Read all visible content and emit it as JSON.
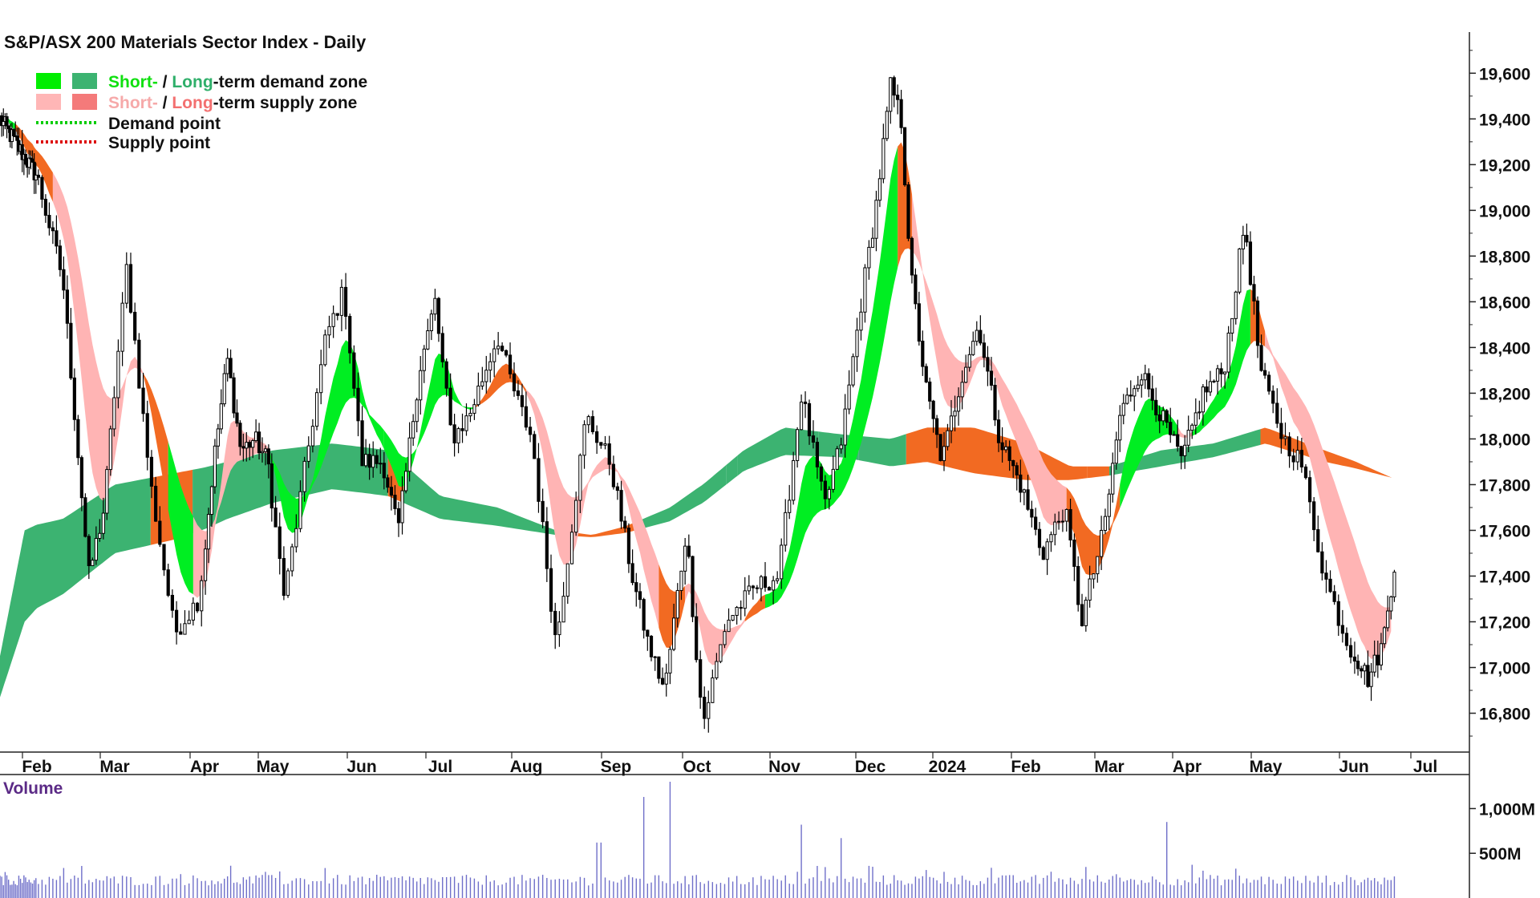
{
  "chart_data": [
    {
      "type": "candlestick",
      "title": "S&P/ASX 200 Materials Sector Index - Daily",
      "legend": [
        {
          "label_parts": [
            {
              "text": "Short-",
              "color": "#10e010"
            },
            {
              "text": " / ",
              "color": "#111111"
            },
            {
              "text": "Long",
              "color": "#2faf6a"
            },
            {
              "text": "-term demand zone",
              "color": "#111111"
            }
          ],
          "swatches": [
            "#00ee00",
            "#3cb371"
          ],
          "style": "swatch"
        },
        {
          "label_parts": [
            {
              "text": "Short-",
              "color": "#f6a9a9"
            },
            {
              "text": " / ",
              "color": "#111111"
            },
            {
              "text": "Long",
              "color": "#f37070"
            },
            {
              "text": "-term supply zone",
              "color": "#111111"
            }
          ],
          "swatches": [
            "#ffb6b6",
            "#f47a7a"
          ],
          "style": "swatch"
        },
        {
          "label_parts": [
            {
              "text": "Demand point",
              "color": "#111111"
            }
          ],
          "swatches": [
            "#00cc00"
          ],
          "style": "dotted"
        },
        {
          "label_parts": [
            {
              "text": "Supply point",
              "color": "#111111"
            }
          ],
          "swatches": [
            "#dd0000"
          ],
          "style": "dotted"
        }
      ],
      "x_labels": [
        "Feb",
        "Mar",
        "Apr",
        "May",
        "Jun",
        "Jul",
        "Aug",
        "Sep",
        "Oct",
        "Nov",
        "Dec",
        "2024",
        "Feb",
        "Mar",
        "Apr",
        "May",
        "Jun",
        "Jul"
      ],
      "y_ticks": [
        "19,600",
        "19,400",
        "19,200",
        "19,000",
        "18,800",
        "18,600",
        "18,400",
        "18,200",
        "18,000",
        "17,800",
        "17,600",
        "17,400",
        "17,200",
        "17,000",
        "16,800"
      ],
      "y_tick_values": [
        19600,
        19400,
        19200,
        19000,
        18800,
        18600,
        18400,
        18200,
        18000,
        17800,
        17600,
        17400,
        17200,
        17000,
        16800
      ],
      "ylim": [
        16630,
        19780
      ],
      "price_anchors": [
        [
          0,
          19400
        ],
        [
          1.5,
          19150
        ],
        [
          2.0,
          18700
        ],
        [
          2.5,
          17400
        ],
        [
          2.8,
          17700
        ],
        [
          3.2,
          18750
        ],
        [
          3.6,
          17800
        ],
        [
          4.0,
          17150
        ],
        [
          4.4,
          17300
        ],
        [
          4.7,
          17900
        ],
        [
          5.0,
          18350
        ],
        [
          5.3,
          17950
        ],
        [
          5.6,
          18000
        ],
        [
          5.9,
          17900
        ],
        [
          6.2,
          17300
        ],
        [
          6.5,
          17800
        ],
        [
          6.9,
          18450
        ],
        [
          7.2,
          18650
        ],
        [
          7.5,
          17900
        ],
        [
          7.9,
          17900
        ],
        [
          8.2,
          17600
        ],
        [
          8.6,
          18300
        ],
        [
          8.9,
          18600
        ],
        [
          9.2,
          18000
        ],
        [
          9.5,
          18100
        ],
        [
          10.0,
          18450
        ],
        [
          10.3,
          18200
        ],
        [
          10.6,
          18000
        ],
        [
          11.0,
          17100
        ],
        [
          11.5,
          18100
        ],
        [
          11.9,
          17900
        ],
        [
          12.3,
          17400
        ],
        [
          12.6,
          17100
        ],
        [
          12.9,
          16900
        ],
        [
          13.3,
          17600
        ],
        [
          13.6,
          16750
        ],
        [
          14.0,
          17200
        ],
        [
          14.5,
          17350
        ],
        [
          14.9,
          17400
        ],
        [
          15.3,
          18200
        ],
        [
          15.7,
          17700
        ],
        [
          16.0,
          18000
        ],
        [
          16.4,
          18700
        ],
        [
          16.6,
          19000
        ],
        [
          16.9,
          19550
        ],
        [
          17.1,
          19400
        ],
        [
          17.3,
          18700
        ],
        [
          17.6,
          18200
        ],
        [
          17.9,
          17900
        ],
        [
          18.3,
          18300
        ],
        [
          18.6,
          18500
        ],
        [
          19.0,
          18000
        ],
        [
          19.4,
          17800
        ],
        [
          19.8,
          17500
        ],
        [
          20.2,
          17700
        ],
        [
          20.5,
          17200
        ],
        [
          20.9,
          17600
        ],
        [
          21.2,
          18100
        ],
        [
          21.6,
          18300
        ],
        [
          22.0,
          18100
        ],
        [
          22.4,
          17900
        ],
        [
          22.8,
          18200
        ],
        [
          23.2,
          18300
        ],
        [
          23.6,
          18950
        ],
        [
          23.9,
          18300
        ],
        [
          24.3,
          18000
        ],
        [
          24.6,
          17900
        ],
        [
          25.0,
          17400
        ],
        [
          25.4,
          17100
        ],
        [
          25.8,
          16950
        ],
        [
          26.1,
          17100
        ],
        [
          26.35,
          17450
        ]
      ],
      "short_zone_segments": [
        {
          "range": [
            0,
            0.6
          ],
          "color": "green"
        },
        {
          "range": [
            0.6,
            1.8
          ],
          "color": "orange"
        },
        {
          "range": [
            1.8,
            3.5
          ],
          "color": "pink"
        },
        {
          "range": [
            3.5,
            3.9
          ],
          "color": "orange"
        },
        {
          "range": [
            3.9,
            4.3
          ],
          "color": "green"
        },
        {
          "range": [
            4.3,
            5.9
          ],
          "color": "pink"
        },
        {
          "range": [
            5.9,
            7.9
          ],
          "color": "green"
        },
        {
          "range": [
            7.9,
            9.6
          ],
          "color": "green"
        },
        {
          "range": [
            9.6,
            10.5
          ],
          "color": "orange"
        },
        {
          "range": [
            10.5,
            12.8
          ],
          "color": "pink"
        },
        {
          "range": [
            12.8,
            13.3
          ],
          "color": "orange"
        },
        {
          "range": [
            13.3,
            14.3
          ],
          "color": "pink"
        },
        {
          "range": [
            14.3,
            14.7
          ],
          "color": "orange"
        },
        {
          "range": [
            14.7,
            17.0
          ],
          "color": "green"
        },
        {
          "range": [
            17.0,
            17.3
          ],
          "color": "orange"
        },
        {
          "range": [
            17.3,
            18.8
          ],
          "color": "pink"
        },
        {
          "range": [
            18.8,
            20.2
          ],
          "color": "pink"
        },
        {
          "range": [
            20.2,
            21.2
          ],
          "color": "orange"
        },
        {
          "range": [
            21.2,
            22.3
          ],
          "color": "green"
        },
        {
          "range": [
            22.3,
            22.6
          ],
          "color": "pink"
        },
        {
          "range": [
            22.6,
            23.7
          ],
          "color": "green"
        },
        {
          "range": [
            23.7,
            24.0
          ],
          "color": "orange"
        },
        {
          "range": [
            24.0,
            26.3
          ],
          "color": "pink"
        }
      ],
      "long_zone_upper": [
        [
          0,
          17050
        ],
        [
          1,
          17600
        ],
        [
          2,
          17650
        ],
        [
          3,
          17800
        ],
        [
          4,
          17850
        ],
        [
          5,
          17900
        ],
        [
          6,
          17950
        ],
        [
          7,
          17980
        ],
        [
          8,
          17950
        ],
        [
          9,
          17750
        ],
        [
          10,
          17700
        ],
        [
          11,
          17600
        ],
        [
          11.6,
          17580
        ],
        [
          12.2,
          17620
        ],
        [
          13,
          17700
        ],
        [
          13.6,
          17800
        ],
        [
          14.3,
          17950
        ],
        [
          15,
          18050
        ],
        [
          16,
          18020
        ],
        [
          16.9,
          18000
        ],
        [
          17.6,
          18050
        ],
        [
          18.5,
          18050
        ],
        [
          19.5,
          17980
        ],
        [
          20.3,
          17880
        ],
        [
          21.0,
          17880
        ],
        [
          22.0,
          17950
        ],
        [
          23.0,
          17980
        ],
        [
          24.0,
          18050
        ],
        [
          25.0,
          17950
        ],
        [
          26.3,
          17830
        ]
      ],
      "long_zone_lower": [
        [
          0,
          16870
        ],
        [
          1,
          17200
        ],
        [
          2,
          17320
        ],
        [
          3,
          17500
        ],
        [
          4,
          17560
        ],
        [
          5,
          17650
        ],
        [
          6,
          17720
        ],
        [
          7,
          17780
        ],
        [
          8,
          17750
        ],
        [
          9,
          17650
        ],
        [
          10,
          17620
        ],
        [
          11,
          17580
        ],
        [
          11.6,
          17570
        ],
        [
          12.2,
          17590
        ],
        [
          13,
          17640
        ],
        [
          13.6,
          17720
        ],
        [
          14.3,
          17860
        ],
        [
          15,
          17930
        ],
        [
          16,
          17920
        ],
        [
          16.9,
          17880
        ],
        [
          17.6,
          17900
        ],
        [
          18.5,
          17850
        ],
        [
          19.5,
          17820
        ],
        [
          20.3,
          17820
        ],
        [
          21.0,
          17840
        ],
        [
          22.0,
          17880
        ],
        [
          23.0,
          17920
        ],
        [
          24.0,
          17980
        ],
        [
          25.0,
          17900
        ],
        [
          26.3,
          17830
        ]
      ],
      "long_zone_color_segments": [
        {
          "range": [
            0,
            3.6
          ],
          "color": "green"
        },
        {
          "range": [
            3.6,
            4.3
          ],
          "color": "orange"
        },
        {
          "range": [
            4.3,
            8.0
          ],
          "color": "green"
        },
        {
          "range": [
            8.0,
            8.3
          ],
          "color": "orange"
        },
        {
          "range": [
            8.3,
            11.0
          ],
          "color": "green"
        },
        {
          "range": [
            11.0,
            12.4
          ],
          "color": "orange"
        },
        {
          "range": [
            12.4,
            14.0
          ],
          "color": "green"
        },
        {
          "range": [
            14.0,
            14.2
          ],
          "color": "green"
        },
        {
          "range": [
            14.2,
            15.6
          ],
          "color": "green"
        },
        {
          "range": [
            15.6,
            16.3
          ],
          "color": "green"
        },
        {
          "range": [
            16.3,
            17.2
          ],
          "color": "green"
        },
        {
          "range": [
            17.2,
            20.6
          ],
          "color": "orange"
        },
        {
          "range": [
            20.6,
            21.0
          ],
          "color": "orange"
        },
        {
          "range": [
            21.0,
            23.9
          ],
          "color": "green"
        },
        {
          "range": [
            23.9,
            26.3
          ],
          "color": "orange"
        }
      ],
      "volume": {
        "label": "Volume",
        "y_ticks": [
          "1,000M",
          "500M"
        ],
        "y_tick_values": [
          1000,
          500
        ],
        "ylim": [
          0,
          1300
        ],
        "spikes": [
          [
            12.5,
            1130
          ],
          [
            13.0,
            1300
          ],
          [
            15.3,
            820
          ],
          [
            22.1,
            850
          ],
          [
            16.0,
            550
          ],
          [
            11.7,
            620
          ]
        ]
      }
    }
  ]
}
